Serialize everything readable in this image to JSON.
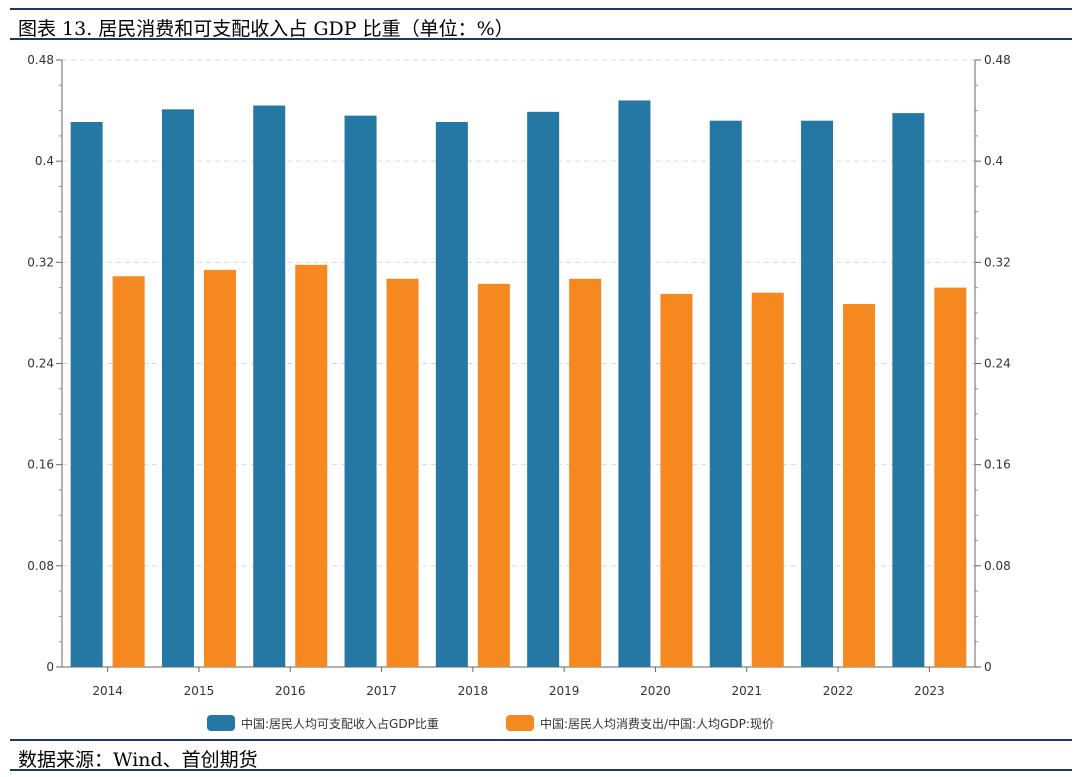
{
  "header": {
    "title": "图表 13. 居民消费和可支配收入占 GDP 比重（单位：%）"
  },
  "footer": {
    "source": "数据来源：Wind、首创期货"
  },
  "chart_data": {
    "type": "bar",
    "title": "",
    "xlabel": "",
    "ylabel": "",
    "categories": [
      "2014",
      "2015",
      "2016",
      "2017",
      "2018",
      "2019",
      "2020",
      "2021",
      "2022",
      "2023"
    ],
    "ylim": [
      0,
      0.48
    ],
    "yticks": [
      "0",
      "0.08",
      "0.16",
      "0.24",
      "0.32",
      "0.4",
      "0.48"
    ],
    "y2ticks": [
      "0",
      "0.08",
      "0.16",
      "0.24",
      "0.32",
      "0.4",
      "0.48"
    ],
    "grid": true,
    "legend_position": "bottom",
    "series": [
      {
        "name": "中国:居民人均可支配收入占GDP比重",
        "color": "#2478a3",
        "values": [
          0.431,
          0.441,
          0.444,
          0.436,
          0.431,
          0.439,
          0.448,
          0.432,
          0.432,
          0.438
        ]
      },
      {
        "name": "中国:居民人均消费支出/中国:人均GDP:现价",
        "color": "#f5881f",
        "values": [
          0.309,
          0.314,
          0.318,
          0.307,
          0.303,
          0.307,
          0.295,
          0.296,
          0.287,
          0.3
        ]
      }
    ]
  }
}
